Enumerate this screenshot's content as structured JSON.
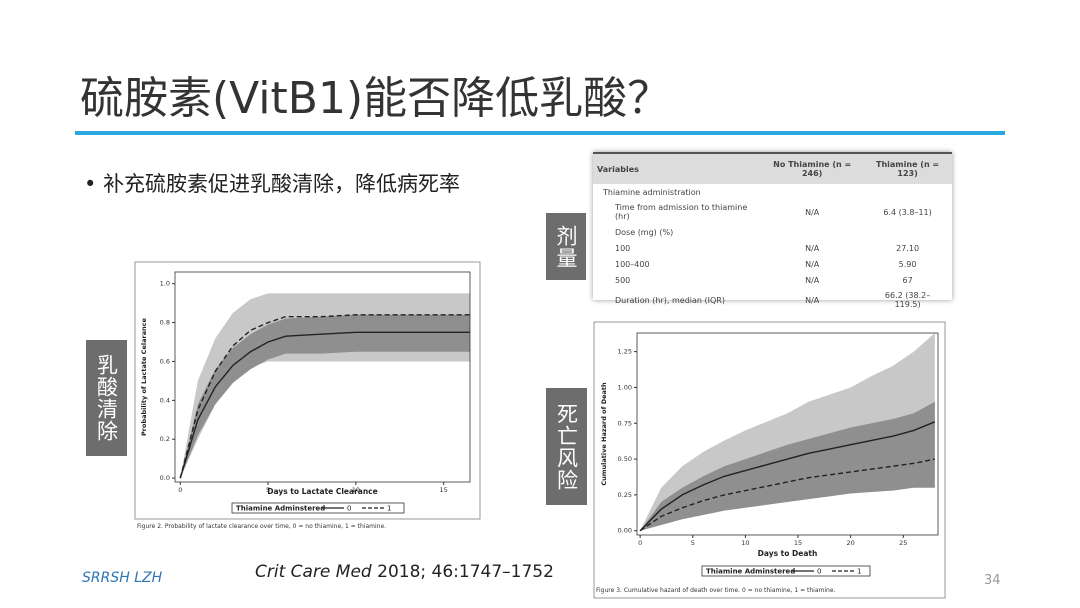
{
  "header": {
    "title": "硫胺素(VitB1)能否降低乳酸？"
  },
  "bullets": [
    "补充硫胺素促进乳酸清除，降低病死率"
  ],
  "tags": [
    "剂量",
    "乳酸清除",
    "死亡风险"
  ],
  "table": {
    "headers": [
      "Variables",
      "No Thiamine (n = 246)",
      "Thiamine (n = 123)"
    ],
    "rows": [
      {
        "label": "Thiamine administration"
      },
      {
        "label": "Time from admission to thiamine (hr)",
        "cells": [
          "N/A",
          "6.4 (3.8–11)"
        ]
      },
      {
        "label": "Dose (mg) (%)"
      },
      {
        "label": "100",
        "cells": [
          "N/A",
          "27.10"
        ]
      },
      {
        "label": "100–400",
        "cells": [
          "N/A",
          "5.90"
        ]
      },
      {
        "label": "500",
        "cells": [
          "N/A",
          "67"
        ]
      },
      {
        "label": "Duration (hr), median (IQR)",
        "cells": [
          "N/A",
          "66.2 (38.2–119.5)"
        ]
      }
    ]
  },
  "citation": {
    "journal": "Crit Care Med",
    "details": "2018; 46:1747–1752"
  },
  "footer": {
    "author": "SRRSH LZH",
    "page": "34"
  },
  "chart_data": [
    {
      "type": "line",
      "x_label": "Days to Lactate Clearance",
      "y_label": "Probability of Lactate Celarance",
      "legend_title": "Thiamine Adminstered",
      "caption": "Figure 2. Probability of lactate clearance over time, 0 = no thiamine, 1 = thiamine.",
      "xlim": [
        -0.3,
        16.5
      ],
      "xticks": [
        0,
        5,
        10,
        15
      ],
      "ylim": [
        -0.02,
        1.06
      ],
      "yticks": [
        {
          "value": 0,
          "label": "0.0"
        },
        0.2,
        0.4,
        0.6,
        0.8,
        {
          "value": 1,
          "label": "1.0"
        }
      ],
      "x": [
        0,
        1,
        2,
        3,
        4,
        5,
        6,
        8,
        10,
        12,
        14,
        16.5
      ],
      "series": [
        {
          "name": "0",
          "color": "#222222",
          "dash": false,
          "band_color": "#8f8f8f",
          "values": [
            0,
            0.3,
            0.47,
            0.58,
            0.65,
            0.7,
            0.73,
            0.74,
            0.75,
            0.75,
            0.75,
            0.75
          ],
          "lower": [
            0,
            0.22,
            0.38,
            0.49,
            0.56,
            0.61,
            0.64,
            0.64,
            0.65,
            0.65,
            0.65,
            0.65
          ],
          "upper": [
            0,
            0.38,
            0.56,
            0.67,
            0.74,
            0.79,
            0.82,
            0.83,
            0.84,
            0.84,
            0.84,
            0.84
          ]
        },
        {
          "name": "1",
          "color": "#222222",
          "dash": true,
          "band_color": "#c8c8c8",
          "values": [
            0,
            0.35,
            0.55,
            0.68,
            0.76,
            0.8,
            0.83,
            0.83,
            0.84,
            0.84,
            0.84,
            0.84
          ],
          "lower": [
            0,
            0.2,
            0.38,
            0.5,
            0.57,
            0.6,
            0.6,
            0.6,
            0.6,
            0.6,
            0.6,
            0.6
          ],
          "upper": [
            0,
            0.5,
            0.72,
            0.85,
            0.92,
            0.95,
            0.95,
            0.95,
            0.95,
            0.95,
            0.95,
            0.95
          ]
        }
      ]
    },
    {
      "type": "line",
      "x_label": "Days to Death",
      "y_label": "Cumulative Hazard of Death",
      "legend_title": "Thiamine Adminstered",
      "caption": "Figure 3. Cumulative hazard of death over time. 0 = no thiamine, 1 = thiamine.",
      "xlim": [
        -0.3,
        28.3
      ],
      "xticks": [
        0,
        5,
        10,
        15,
        20,
        25
      ],
      "ylim": [
        -0.03,
        1.38
      ],
      "yticks": [
        {
          "value": 0,
          "label": "0.00"
        },
        0.25,
        {
          "value": 0.5,
          "label": "0.50"
        },
        0.75,
        {
          "value": 1,
          "label": "1.00"
        },
        1.25
      ],
      "x": [
        0,
        2,
        4,
        6,
        8,
        10,
        12,
        14,
        16,
        18,
        20,
        22,
        24,
        26,
        28
      ],
      "series": [
        {
          "name": "0",
          "color": "#222222",
          "dash": false,
          "band_color": "#c8c8c8",
          "values": [
            0,
            0.15,
            0.25,
            0.32,
            0.38,
            0.42,
            0.46,
            0.5,
            0.54,
            0.57,
            0.6,
            0.63,
            0.66,
            0.7,
            0.76
          ],
          "lower": [
            0,
            0.05,
            0.1,
            0.15,
            0.2,
            0.23,
            0.26,
            0.3,
            0.33,
            0.36,
            0.38,
            0.4,
            0.42,
            0.45,
            0.48
          ],
          "upper": [
            0,
            0.3,
            0.45,
            0.55,
            0.63,
            0.7,
            0.76,
            0.82,
            0.9,
            0.95,
            1.0,
            1.08,
            1.15,
            1.25,
            1.38
          ]
        },
        {
          "name": "1",
          "color": "#222222",
          "dash": true,
          "band_color": "#8f8f8f",
          "values": [
            0,
            0.1,
            0.16,
            0.21,
            0.25,
            0.28,
            0.31,
            0.34,
            0.37,
            0.39,
            0.41,
            0.43,
            0.45,
            0.47,
            0.5
          ],
          "lower": [
            0,
            0.04,
            0.08,
            0.11,
            0.14,
            0.16,
            0.18,
            0.2,
            0.22,
            0.24,
            0.26,
            0.27,
            0.28,
            0.3,
            0.3
          ],
          "upper": [
            0,
            0.2,
            0.3,
            0.38,
            0.45,
            0.5,
            0.55,
            0.6,
            0.64,
            0.68,
            0.72,
            0.75,
            0.78,
            0.82,
            0.9
          ]
        }
      ]
    }
  ]
}
